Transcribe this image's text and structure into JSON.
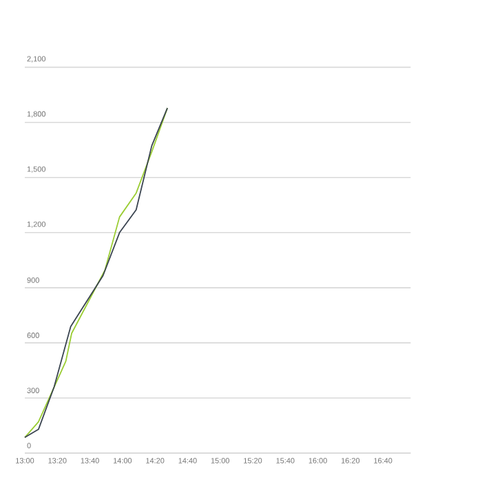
{
  "chart_data": {
    "type": "line",
    "series": [
      {
        "color": "#9acd32",
        "x": [
          13.0,
          13.14,
          13.42,
          13.48,
          13.82,
          13.97,
          14.14,
          14.3,
          14.46
        ],
        "values": [
          85,
          170,
          500,
          652,
          995,
          1285,
          1415,
          1640,
          1878
        ]
      },
      {
        "color": "#3a4450",
        "x": [
          13.0,
          13.14,
          13.3,
          13.47,
          13.8,
          13.97,
          14.14,
          14.3,
          14.46
        ],
        "values": [
          85,
          129,
          360,
          689,
          965,
          1200,
          1324,
          1673,
          1878
        ]
      }
    ],
    "xlim": [
      13,
      16.95
    ],
    "xticks": [
      {
        "value": 13,
        "label": "13:00"
      },
      {
        "value": 13.3333,
        "label": "13:20"
      },
      {
        "value": 13.6667,
        "label": "13:40"
      },
      {
        "value": 14,
        "label": "14:00"
      },
      {
        "value": 14.3333,
        "label": "14:20"
      },
      {
        "value": 14.6667,
        "label": "14:40"
      },
      {
        "value": 15,
        "label": "15:00"
      },
      {
        "value": 15.3333,
        "label": "15:20"
      },
      {
        "value": 15.6667,
        "label": "15:40"
      },
      {
        "value": 16,
        "label": "16:00"
      },
      {
        "value": 16.3333,
        "label": "16:20"
      },
      {
        "value": 16.6667,
        "label": "16:40"
      }
    ],
    "ylim": [
      0,
      2100
    ],
    "yticks": [
      {
        "value": 0,
        "label": "0"
      },
      {
        "value": 300,
        "label": "300"
      },
      {
        "value": 600,
        "label": "600"
      },
      {
        "value": 900,
        "label": "900"
      },
      {
        "value": 1200,
        "label": "1,200"
      },
      {
        "value": 1500,
        "label": "1,500"
      },
      {
        "value": 1800,
        "label": "1,800"
      },
      {
        "value": 2100,
        "label": "2,100"
      }
    ],
    "grid": "y",
    "marker": "none",
    "line_style": "solid"
  }
}
